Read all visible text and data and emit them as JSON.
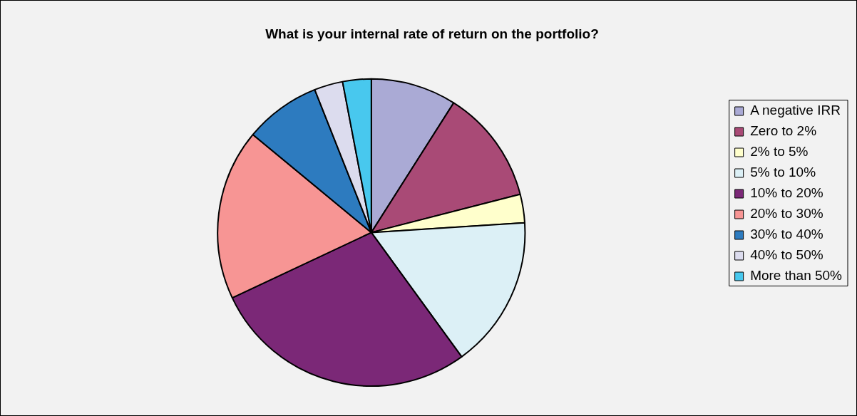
{
  "chart_data": {
    "type": "pie",
    "title": "What is your internal rate of return on the portfolio?",
    "categories": [
      "A negative IRR",
      "Zero to 2%",
      "2% to 5%",
      "5% to 10%",
      "10% to 20%",
      "20% to 30%",
      "30% to 40%",
      "40% to 50%",
      "More than 50%"
    ],
    "values": [
      9,
      12,
      3,
      16,
      28,
      18,
      8,
      3,
      3
    ],
    "colors": [
      "#aaaad5",
      "#a94a76",
      "#ffffcc",
      "#dcf0f6",
      "#7b2877",
      "#f79594",
      "#2d7bbf",
      "#dcdcee",
      "#48c8ee"
    ],
    "legend": "right"
  }
}
